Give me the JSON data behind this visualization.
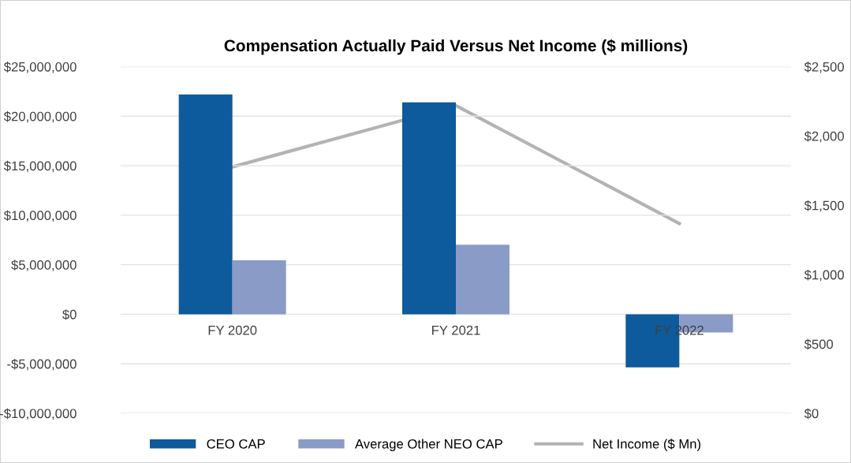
{
  "chart_data": {
    "type": "bar",
    "title": "Compensation Actually Paid Versus Net Income ($ millions)",
    "categories": [
      "FY 2020",
      "FY 2021",
      "FY 2022"
    ],
    "series": [
      {
        "name": "CEO CAP",
        "color": "#0d5a9c",
        "values": [
          22200000,
          21400000,
          -5360000
        ]
      },
      {
        "name": "Average Other NEO CAP",
        "color": "#8a9bc7",
        "values": [
          5440000,
          7030000,
          -1840000
        ]
      },
      {
        "name": "Net Income ($ Mn)",
        "type": "line",
        "axis": "y2",
        "color": "#b3b3b3",
        "values": [
          1777,
          2219,
          1369
        ]
      }
    ],
    "ylim": [
      -10000000,
      25000000
    ],
    "yticks": [
      {
        "value": -10000000,
        "label": "-$10,000,000"
      },
      {
        "value": -5000000,
        "label": "-$5,000,000"
      },
      {
        "value": 0,
        "label": "$0"
      },
      {
        "value": 5000000,
        "label": "$5,000,000"
      },
      {
        "value": 10000000,
        "label": "$10,000,000"
      },
      {
        "value": 15000000,
        "label": "$15,000,000"
      },
      {
        "value": 20000000,
        "label": "$20,000,000"
      },
      {
        "value": 25000000,
        "label": "$25,000,000"
      }
    ],
    "y2lim": [
      0,
      2500
    ],
    "y2ticks": [
      {
        "value": 0,
        "label": "$0"
      },
      {
        "value": 500,
        "label": "$500"
      },
      {
        "value": 1000,
        "label": "$1,000"
      },
      {
        "value": 1500,
        "label": "$1,500"
      },
      {
        "value": 2000,
        "label": "$2,000"
      },
      {
        "value": 2500,
        "label": "$2,500"
      }
    ],
    "grid": "y",
    "legend": "bottom",
    "marker": "none"
  }
}
